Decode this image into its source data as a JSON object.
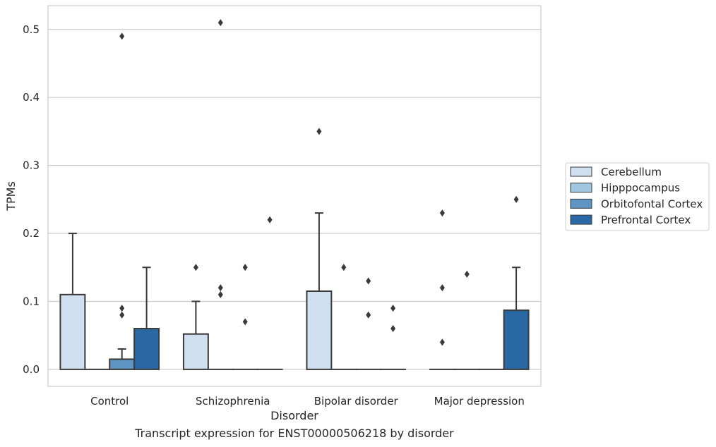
{
  "chart_data": {
    "type": "bar",
    "caption": "Transcript expression for ENST00000506218 by disorder",
    "xlabel": "Disorder",
    "ylabel": "TPMs",
    "ylim": [
      -0.025,
      0.535
    ],
    "yticks": [
      0.0,
      0.1,
      0.2,
      0.3,
      0.4,
      0.5
    ],
    "ytick_labels": [
      "0.0",
      "0.1",
      "0.2",
      "0.3",
      "0.4",
      "0.5"
    ],
    "grid": "horizontal",
    "legend_position": "right",
    "categories": [
      "Control",
      "Schizophrenia",
      "Bipolar disorder",
      "Major depression"
    ],
    "series": [
      {
        "name": "Cerebellum",
        "color": "#d1e0f0",
        "values": [
          0.11,
          0.052,
          0.115,
          0.0
        ],
        "whisker": [
          0.2,
          0.1,
          0.23,
          0.0
        ],
        "outliers": [
          [],
          [
            0.15
          ],
          [
            0.35
          ],
          [
            0.04,
            0.12,
            0.23
          ]
        ]
      },
      {
        "name": "Hipppocampus",
        "color": "#a0c6e0",
        "values": [
          0.0,
          0.0,
          0.0,
          0.0
        ],
        "whisker": [
          0.0,
          0.0,
          0.0,
          0.0
        ],
        "outliers": [
          [],
          [
            0.11,
            0.12,
            0.51
          ],
          [
            0.15
          ],
          [
            0.14
          ]
        ]
      },
      {
        "name": "Orbitofontal Cortex",
        "color": "#5e95c2",
        "values": [
          0.015,
          0.0,
          0.0,
          0.0
        ],
        "whisker": [
          0.03,
          0.0,
          0.0,
          0.0
        ],
        "outliers": [
          [
            0.08,
            0.09,
            0.49
          ],
          [
            0.07,
            0.15
          ],
          [
            0.08,
            0.13
          ],
          []
        ]
      },
      {
        "name": "Prefrontal Cortex",
        "color": "#2a67a5",
        "values": [
          0.06,
          0.0,
          0.0,
          0.087
        ],
        "whisker": [
          0.15,
          0.0,
          0.0,
          0.15
        ],
        "outliers": [
          [],
          [
            0.22
          ],
          [
            0.06,
            0.09
          ],
          [
            0.25
          ]
        ]
      }
    ]
  }
}
